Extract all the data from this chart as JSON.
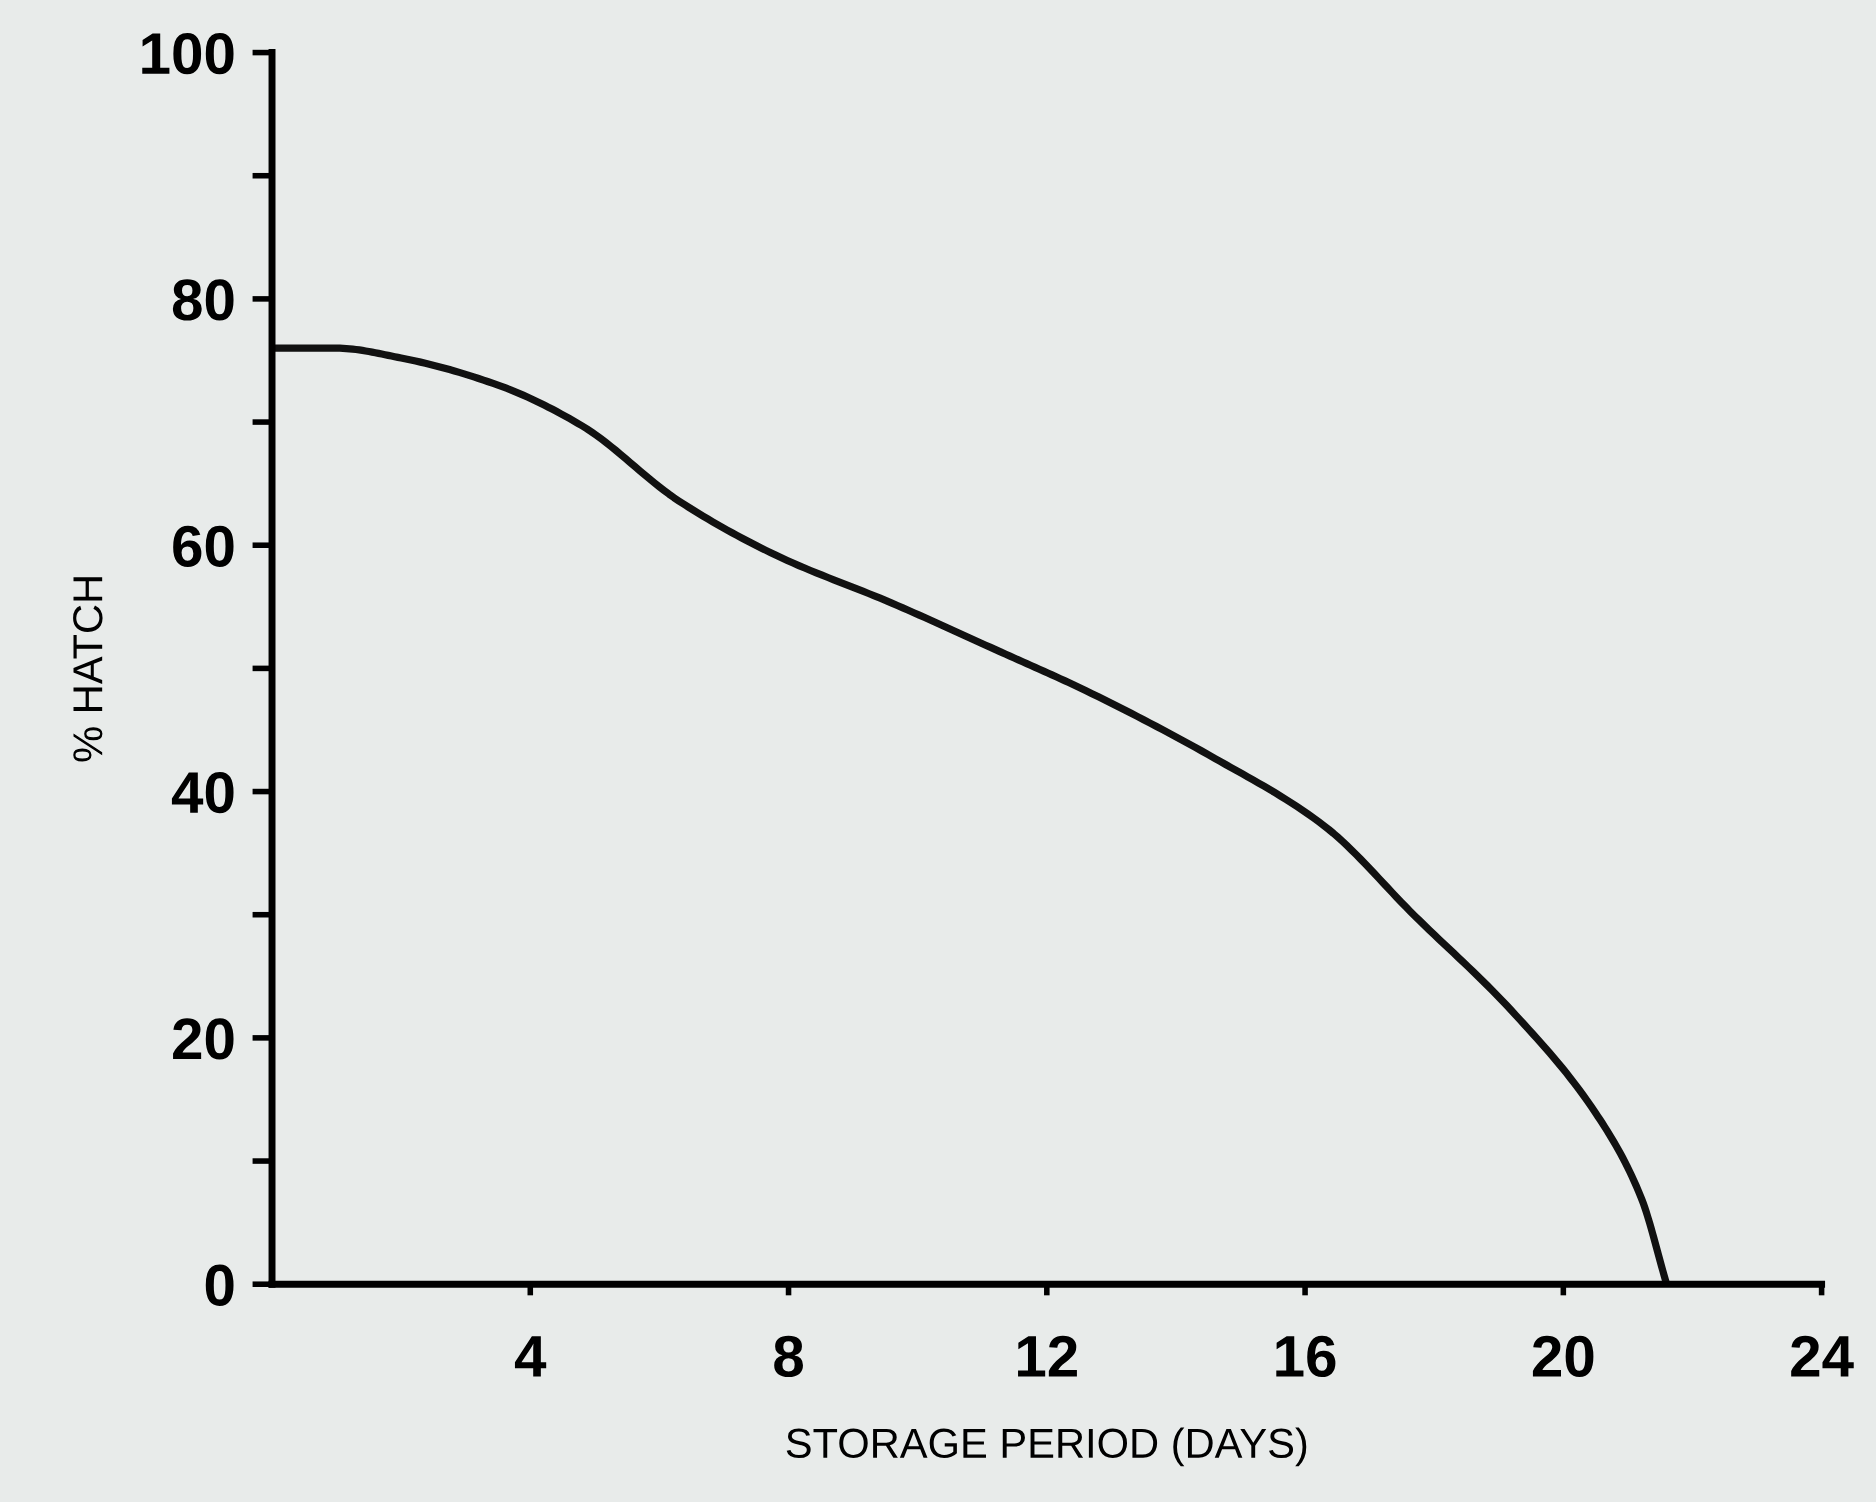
{
  "chart_data": {
    "type": "line",
    "xlabel": "STORAGE PERIOD (DAYS)",
    "ylabel": "% HATCH",
    "x": [
      0,
      1,
      2,
      3.5,
      4.8,
      6.3,
      7.8,
      9.6,
      11.3,
      12.6,
      14.6,
      16.3,
      17.7,
      19.2,
      20.5,
      21.2,
      21.6
    ],
    "series": [
      {
        "color": "#111111",
        "values": [
          76,
          76,
          75.2,
          73,
          69.7,
          63.6,
          59.2,
          55.3,
          51.3,
          48.2,
          42.7,
          37.2,
          29.9,
          22.2,
          13.9,
          7.1,
          0
        ]
      }
    ],
    "xlim": [
      0,
      24
    ],
    "xticks": [
      4,
      8,
      12,
      16,
      20,
      24
    ],
    "ylim": [
      0,
      100
    ],
    "yticks": [
      0,
      {
        "value": 10,
        "label": null
      },
      20,
      {
        "value": 30,
        "label": null
      },
      40,
      {
        "value": 50,
        "label": null
      },
      60,
      {
        "value": 70,
        "label": null
      },
      80,
      {
        "value": 90,
        "label": null
      },
      100
    ],
    "grid": false,
    "marker": "none",
    "line_style": "solid"
  }
}
